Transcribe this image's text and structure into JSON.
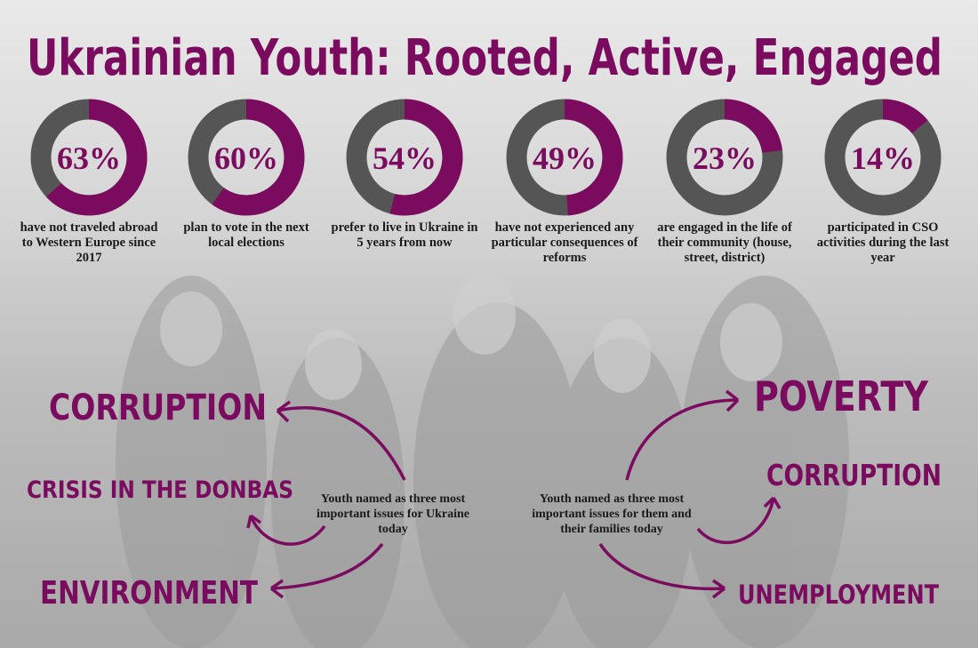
{
  "title": "Ukrainian Youth: Rooted, Active, Engaged",
  "stats": {
    "type": "donut",
    "color": "#7a0b5e",
    "track_color": "#555555",
    "values": [
      63,
      60,
      54,
      49,
      23,
      14
    ],
    "value_labels": [
      "63%",
      "60%",
      "54%",
      "49%",
      "23%",
      "14%"
    ],
    "captions": [
      "have not traveled abroad to Western Europe since 2017",
      "plan to vote in the next local elections",
      "prefer to live in Ukraine in 5 years from now",
      "have not experienced any particular consequences of reforms",
      "are engaged in the life of their community (house, street, district)",
      "participated in CSO activities during the last year"
    ]
  },
  "issues_ukraine": {
    "caption": "Youth named as three most important issues for Ukraine today",
    "items": [
      "CORRUPTION",
      "CRISIS IN THE DONBAS",
      "ENVIRONMENT"
    ]
  },
  "issues_family": {
    "caption": "Youth named as three most important issues for them and their families today",
    "items": [
      "POVERTY",
      "CORRUPTION",
      "UNEMPLOYMENT"
    ]
  }
}
